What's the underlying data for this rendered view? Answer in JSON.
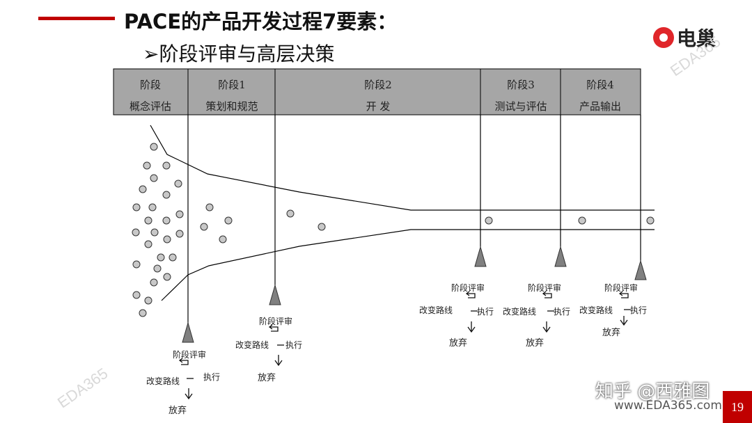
{
  "slide": {
    "title": "PACE的产品开发过程7要素：",
    "subtitle": "➢阶段评审与高层决策",
    "page_number": "19",
    "accent_color": "#c00000"
  },
  "logo": {
    "text": "电巢",
    "icon": "dianchao-logo-icon"
  },
  "watermarks": {
    "zhihu": "知乎 @西雅图",
    "website": "www.EDA365.com",
    "eda": "EDA365"
  },
  "stages": [
    {
      "line1": "阶段",
      "line2": "概念评估"
    },
    {
      "line1": "阶段1",
      "line2": "策划和规范"
    },
    {
      "line1": "阶段2",
      "line2": "开  发"
    },
    {
      "line1": "阶段3",
      "line2": "测试与评估"
    },
    {
      "line1": "阶段4",
      "line2": "产品输出"
    }
  ],
  "decision": {
    "review": "阶段评审",
    "change": "改变路线",
    "execute": "执行",
    "abandon": "放弃"
  },
  "header_color": "#a6a6a6"
}
